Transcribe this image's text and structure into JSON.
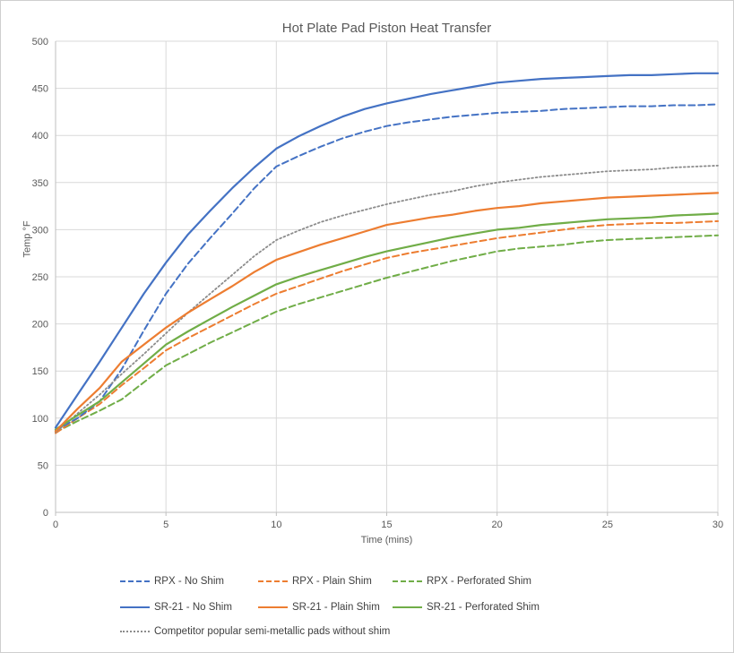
{
  "chart_data": {
    "type": "line",
    "title": "Hot Plate Pad Piston Heat Transfer",
    "xlabel": "Time (mins)",
    "ylabel": "Temp °F",
    "xlim": [
      0,
      30
    ],
    "ylim": [
      0,
      500
    ],
    "x_ticks": [
      0,
      5,
      10,
      15,
      20,
      25,
      30
    ],
    "y_ticks": [
      0,
      50,
      100,
      150,
      200,
      250,
      300,
      350,
      400,
      450,
      500
    ],
    "grid": true,
    "legend_position": "bottom",
    "x": [
      0,
      1,
      2,
      3,
      4,
      5,
      6,
      7,
      8,
      9,
      10,
      11,
      12,
      13,
      14,
      15,
      16,
      17,
      18,
      19,
      20,
      21,
      22,
      23,
      24,
      25,
      26,
      27,
      28,
      29,
      30
    ],
    "series": [
      {
        "id": "rpx_no_shim",
        "label": "RPX - No Shim",
        "color": "#4472C4",
        "style": "dashed",
        "legend_row": 0,
        "legend_col": 0,
        "values": [
          87,
          100,
          118,
          152,
          193,
          232,
          264,
          291,
          317,
          344,
          367,
          378,
          388,
          397,
          404,
          410,
          414,
          417,
          420,
          422,
          424,
          425,
          426,
          428,
          429,
          430,
          431,
          431,
          432,
          432,
          433
        ]
      },
      {
        "id": "rpx_plain_shim",
        "label": "RPX - Plain Shim",
        "color": "#ED7D31",
        "style": "dashed",
        "legend_row": 0,
        "legend_col": 1,
        "values": [
          84,
          100,
          115,
          135,
          153,
          172,
          185,
          197,
          209,
          221,
          232,
          240,
          248,
          256,
          263,
          270,
          275,
          279,
          283,
          287,
          291,
          294,
          297,
          300,
          303,
          305,
          306,
          307,
          307,
          308,
          309
        ]
      },
      {
        "id": "rpx_perforated_shim",
        "label": "RPX - Perforated Shim",
        "color": "#70AD47",
        "style": "dashed",
        "legend_row": 0,
        "legend_col": 2,
        "values": [
          85,
          97,
          108,
          120,
          138,
          156,
          168,
          180,
          191,
          202,
          213,
          221,
          228,
          235,
          242,
          249,
          255,
          261,
          267,
          272,
          277,
          280,
          282,
          284,
          287,
          289,
          290,
          291,
          292,
          293,
          294
        ]
      },
      {
        "id": "sr21_no_shim",
        "label": "SR-21 - No Shim",
        "color": "#4472C4",
        "style": "solid",
        "legend_row": 1,
        "legend_col": 0,
        "values": [
          90,
          125,
          160,
          196,
          232,
          265,
          295,
          320,
          344,
          366,
          386,
          399,
          410,
          420,
          428,
          434,
          439,
          444,
          448,
          452,
          456,
          458,
          460,
          461,
          462,
          463,
          464,
          464,
          465,
          466,
          466
        ]
      },
      {
        "id": "sr21_plain_shim",
        "label": "SR-21 - Plain Shim",
        "color": "#ED7D31",
        "style": "solid",
        "legend_row": 1,
        "legend_col": 1,
        "values": [
          86,
          110,
          132,
          160,
          178,
          196,
          212,
          226,
          240,
          255,
          268,
          276,
          284,
          291,
          298,
          305,
          309,
          313,
          316,
          320,
          323,
          325,
          328,
          330,
          332,
          334,
          335,
          336,
          337,
          338,
          339
        ]
      },
      {
        "id": "sr21_perforated_shim",
        "label": "SR-21 - Perforated Shim",
        "color": "#70AD47",
        "style": "solid",
        "legend_row": 1,
        "legend_col": 2,
        "values": [
          88,
          103,
          118,
          138,
          158,
          178,
          192,
          205,
          218,
          230,
          242,
          250,
          257,
          264,
          271,
          277,
          282,
          287,
          292,
          296,
          300,
          302,
          305,
          307,
          309,
          311,
          312,
          313,
          315,
          316,
          317
        ]
      },
      {
        "id": "competitor",
        "label": "Competitor popular semi-metallic pads without shim",
        "color": "#8C8C8C",
        "style": "dotted",
        "legend_row": 2,
        "legend_col": 0,
        "values": [
          85,
          105,
          125,
          147,
          168,
          190,
          212,
          232,
          252,
          272,
          289,
          299,
          308,
          315,
          321,
          327,
          332,
          337,
          341,
          346,
          350,
          353,
          356,
          358,
          360,
          362,
          363,
          364,
          366,
          367,
          368
        ]
      }
    ],
    "draw_order": [
      "rpx_perforated_shim",
      "rpx_plain_shim",
      "rpx_no_shim",
      "competitor",
      "sr21_perforated_shim",
      "sr21_plain_shim",
      "sr21_no_shim"
    ]
  },
  "style": {
    "grid_color": "#D9D9D9",
    "axis_line_color": "#BFBFBF",
    "axis_text_color": "#595959",
    "title_color": "#595959",
    "legend_text_color": "#404040"
  }
}
